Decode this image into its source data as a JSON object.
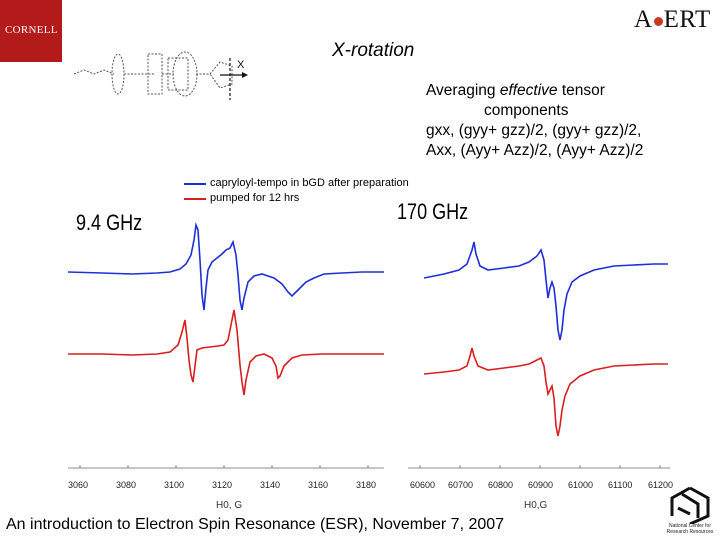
{
  "header": {
    "left_logo": "CORNELL",
    "right_logo_prefix": "A",
    "right_logo_suffix": "ERT",
    "title": "X-rotation"
  },
  "caption": {
    "line1_pre": "Averaging ",
    "line1_em": "effective",
    "line1_post": " tensor",
    "line2": "components",
    "line3": "gxx, (gyy+ gzz)/2, (gyy+ gzz)/2,",
    "line4": "Axx, (Ayy+ Azz)/2, (Ayy+ Azz)/2"
  },
  "molecule": {
    "axis_label": "X",
    "icon": "molecule-structure-icon"
  },
  "left_panel": {
    "frequency": "9.4 GHz",
    "legend": [
      {
        "label": "capryloyl-tempo in bGD after preparation",
        "color": "#1f2fd6"
      },
      {
        "label": "pumped for 12 hrs",
        "color": "#d81f1f"
      }
    ],
    "x_ticks": [
      "3060",
      "3080",
      "3100",
      "3120",
      "3140",
      "3160",
      "3180"
    ],
    "x_label": "H0, G"
  },
  "right_panel": {
    "frequency": "170 GHz",
    "x_ticks": [
      "60600",
      "60700",
      "60800",
      "60900",
      "61000",
      "61100",
      "61200"
    ],
    "x_label": "H0,G"
  },
  "colors": {
    "blue": "#1f2fd6",
    "red": "#d81f1f"
  },
  "footer": {
    "text": "An introduction to Electron Spin Resonance (ESR), November 7, 2007",
    "logo_text": "National Center for Research Resources"
  }
}
